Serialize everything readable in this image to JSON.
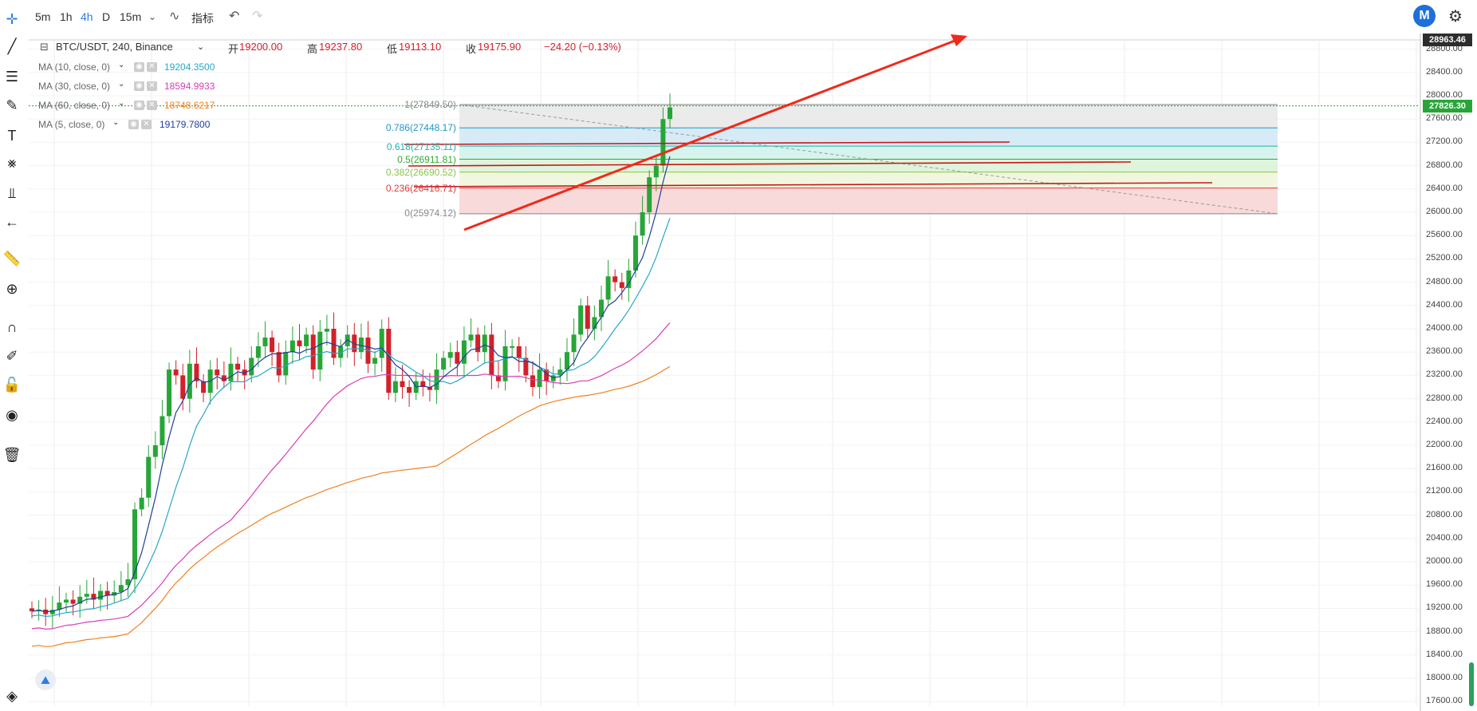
{
  "toolbar": {
    "timeframes": [
      "5m",
      "1h",
      "4h",
      "D",
      "15m"
    ],
    "active_timeframe": "4h",
    "indicators_label": "指标",
    "undo_icon": "undo-icon",
    "redo_icon": "redo-icon"
  },
  "logo": {
    "letter": "M",
    "icon": "brand-logo-icon"
  },
  "settings_icon": "gear-icon",
  "symbol": {
    "title": "BTC/USDT, 240, Binance",
    "open_label": "开",
    "open": "19200.00",
    "high_label": "高",
    "high": "19237.80",
    "low_label": "低",
    "low": "19113.10",
    "close_label": "收",
    "close": "19175.90",
    "change": "−24.20 (−0.13%)"
  },
  "indicators": [
    {
      "name": "MA (10, close, 0)",
      "value": "19204.3500",
      "color": "#26a8c9"
    },
    {
      "name": "MA (30, close, 0)",
      "value": "18594.9933",
      "color": "#d63fb6"
    },
    {
      "name": "MA (60, close, 0)",
      "value": "18748.6217",
      "color": "#f0801e"
    },
    {
      "name": "MA (5, close, 0)",
      "value": "19179.7800",
      "color": "#1f3f9a"
    }
  ],
  "fib_levels": [
    {
      "label": "1(27849.50)",
      "price": 27849.5,
      "color": "#888888",
      "fill": "#e8e8e8"
    },
    {
      "label": "0.786(27448.17)",
      "price": 27448.17,
      "color": "#2196c9",
      "fill": "#cfe8f5"
    },
    {
      "label": "0.618(27135.11)",
      "price": 27135.11,
      "color": "#20b2aa",
      "fill": "#cff2ea"
    },
    {
      "label": "0.5(26911.81)",
      "price": 26911.81,
      "color": "#33a832",
      "fill": "#d8f3d6"
    },
    {
      "label": "0.382(26690.52)",
      "price": 26690.52,
      "color": "#8bc34a",
      "fill": "#eef6d8"
    },
    {
      "label": "0.236(26416.71)",
      "price": 26416.71,
      "color": "#e53935",
      "fill": "#f7d4d4"
    },
    {
      "label": "0(25974.12)",
      "price": 25974.12,
      "color": "#888888",
      "fill": ""
    }
  ],
  "price_scale": {
    "ticks": [
      "28800.00",
      "28400.00",
      "28000.00",
      "27600.00",
      "27200.00",
      "26800.00",
      "26400.00",
      "26000.00",
      "25600.00",
      "25200.00",
      "24800.00",
      "24400.00",
      "24000.00",
      "23600.00",
      "23200.00",
      "22800.00",
      "22400.00",
      "22000.00",
      "21600.00",
      "21200.00",
      "20800.00",
      "20400.00",
      "20000.00",
      "19600.00",
      "19200.00",
      "18800.00",
      "18400.00",
      "18000.00",
      "17600.00"
    ],
    "top_marker": "28963.46",
    "current_price": "27826.30",
    "min": 17600,
    "max": 28963.46,
    "up_color": "#26a637",
    "down_color": "#d3202a"
  },
  "left_tool_icons": [
    "crosshair-icon",
    "trend-line-icon",
    "horizontal-lines-icon",
    "brush-icon",
    "text-icon",
    "pattern-icon",
    "measure-icon",
    "back-arrow-icon",
    "ruler-icon",
    "zoom-in-icon",
    "magnet-icon",
    "lock-drawing-icon",
    "unlock-icon",
    "eye-icon",
    "trash-icon",
    "layers-icon"
  ],
  "candles_close": [
    19150,
    19180,
    19100,
    19175,
    19300,
    19350,
    19280,
    19400,
    19450,
    19350,
    19500,
    19420,
    19480,
    19600,
    19700,
    20900,
    21100,
    21800,
    22000,
    22500,
    23300,
    23200,
    22800,
    23400,
    23100,
    22900,
    23300,
    23200,
    23100,
    23400,
    23300,
    23200,
    23500,
    23700,
    23850,
    23600,
    23200,
    23600,
    23800,
    23700,
    23900,
    23300,
    23950,
    24000,
    23500,
    23700,
    23900,
    23600,
    23850,
    23400,
    23500,
    24000,
    22900,
    23100,
    23000,
    22900,
    23100,
    23000,
    22950,
    23300,
    23500,
    23600,
    23400,
    23800,
    23900,
    23600,
    23900,
    23200,
    23100,
    23700,
    23700,
    23500,
    23200,
    23000,
    23300,
    23100,
    23200,
    23300,
    23600,
    23900,
    24400,
    24000,
    24200,
    24500,
    24900,
    24800,
    24700,
    25000,
    25600,
    26000,
    26600,
    26800,
    27600,
    27800
  ]
}
